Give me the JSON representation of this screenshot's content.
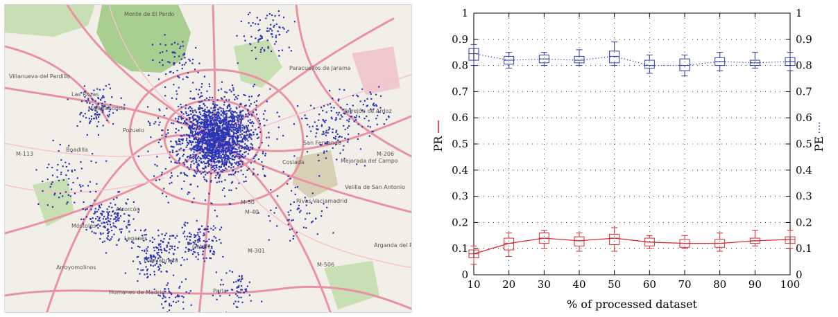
{
  "map": {
    "labels": {
      "monte": "Monte de El Pardo",
      "villanueva": "Villanueva del Pardillo",
      "paracuellos": "Paracuellos de Jarama",
      "torrejon": "Torrejón de Ardoz",
      "mejorada": "Mejorada del Campo",
      "velilla": "Velilla de San Antonio",
      "rivas": "Rivas-Vaciamadrid",
      "getafe": "Getafe",
      "leganes": "Leganés",
      "fuenlabrada": "Fuenlabrada",
      "humanes": "Humanes de Madrid",
      "arroyomolinos": "Arroyomolinos",
      "alcorcon": "Alcorcón",
      "mostoles": "Móstoles",
      "boadilla": "Boadilla",
      "parla": "Parla",
      "sanfernando": "San Fernando",
      "arganda": "Arganda del Rey",
      "coslada": "Coslada",
      "pozuelo": "Pozuelo",
      "majadahonda": "Majadahonda",
      "lasrozas": "Las Rozas",
      "m40": "M-40",
      "m50": "M-50",
      "m301": "M-301",
      "m506": "M-506",
      "m206": "M-206",
      "m113": "M-113"
    },
    "colors": {
      "background": "#f2efe9",
      "park": "#c8dfb3",
      "forest": "#a8cf90",
      "road": "#e892a2",
      "minor_road": "#ffffff",
      "dot": "#2b35b5",
      "label": "#666666"
    }
  },
  "chart_data": {
    "type": "line",
    "xlabel": "% of processed dataset",
    "ylabel_left": "PR",
    "ylabel_right": "PE",
    "x": [
      10,
      20,
      30,
      40,
      50,
      60,
      70,
      80,
      90,
      100
    ],
    "xlim": [
      10,
      100
    ],
    "ylim": [
      0,
      1
    ],
    "xticks": [
      "10",
      "20",
      "30",
      "40",
      "50",
      "60",
      "70",
      "80",
      "90",
      "100"
    ],
    "yticks": [
      "0",
      "0.1",
      "0.2",
      "0.3",
      "0.4",
      "0.5",
      "0.6",
      "0.7",
      "0.8",
      "0.9",
      "1"
    ],
    "grid": true,
    "series": [
      {
        "name": "PR",
        "color": "#d9272e",
        "style": "solid",
        "axis": "left",
        "values": [
          0.08,
          0.12,
          0.14,
          0.13,
          0.14,
          0.125,
          0.12,
          0.12,
          0.13,
          0.135
        ],
        "box_low": [
          0.065,
          0.095,
          0.12,
          0.11,
          0.115,
          0.11,
          0.105,
          0.105,
          0.12,
          0.12
        ],
        "box_high": [
          0.095,
          0.14,
          0.16,
          0.145,
          0.155,
          0.14,
          0.135,
          0.135,
          0.14,
          0.145
        ],
        "whisker_low": [
          0.04,
          0.07,
          0.1,
          0.09,
          0.09,
          0.1,
          0.1,
          0.09,
          0.11,
          0.1
        ],
        "whisker_high": [
          0.11,
          0.16,
          0.17,
          0.16,
          0.18,
          0.15,
          0.15,
          0.16,
          0.17,
          0.17
        ]
      },
      {
        "name": "PE",
        "color": "#2b3aa8",
        "style": "dotted",
        "axis": "right",
        "values": [
          0.845,
          0.82,
          0.825,
          0.82,
          0.835,
          0.8,
          0.8,
          0.815,
          0.81,
          0.815
        ],
        "box_low": [
          0.82,
          0.805,
          0.81,
          0.81,
          0.81,
          0.79,
          0.78,
          0.8,
          0.8,
          0.8
        ],
        "box_high": [
          0.865,
          0.835,
          0.84,
          0.835,
          0.855,
          0.82,
          0.825,
          0.83,
          0.82,
          0.83
        ],
        "whisker_low": [
          0.8,
          0.79,
          0.8,
          0.8,
          0.8,
          0.77,
          0.76,
          0.78,
          0.79,
          0.78
        ],
        "whisker_high": [
          0.88,
          0.85,
          0.85,
          0.86,
          0.89,
          0.84,
          0.84,
          0.85,
          0.85,
          0.85
        ]
      }
    ]
  }
}
